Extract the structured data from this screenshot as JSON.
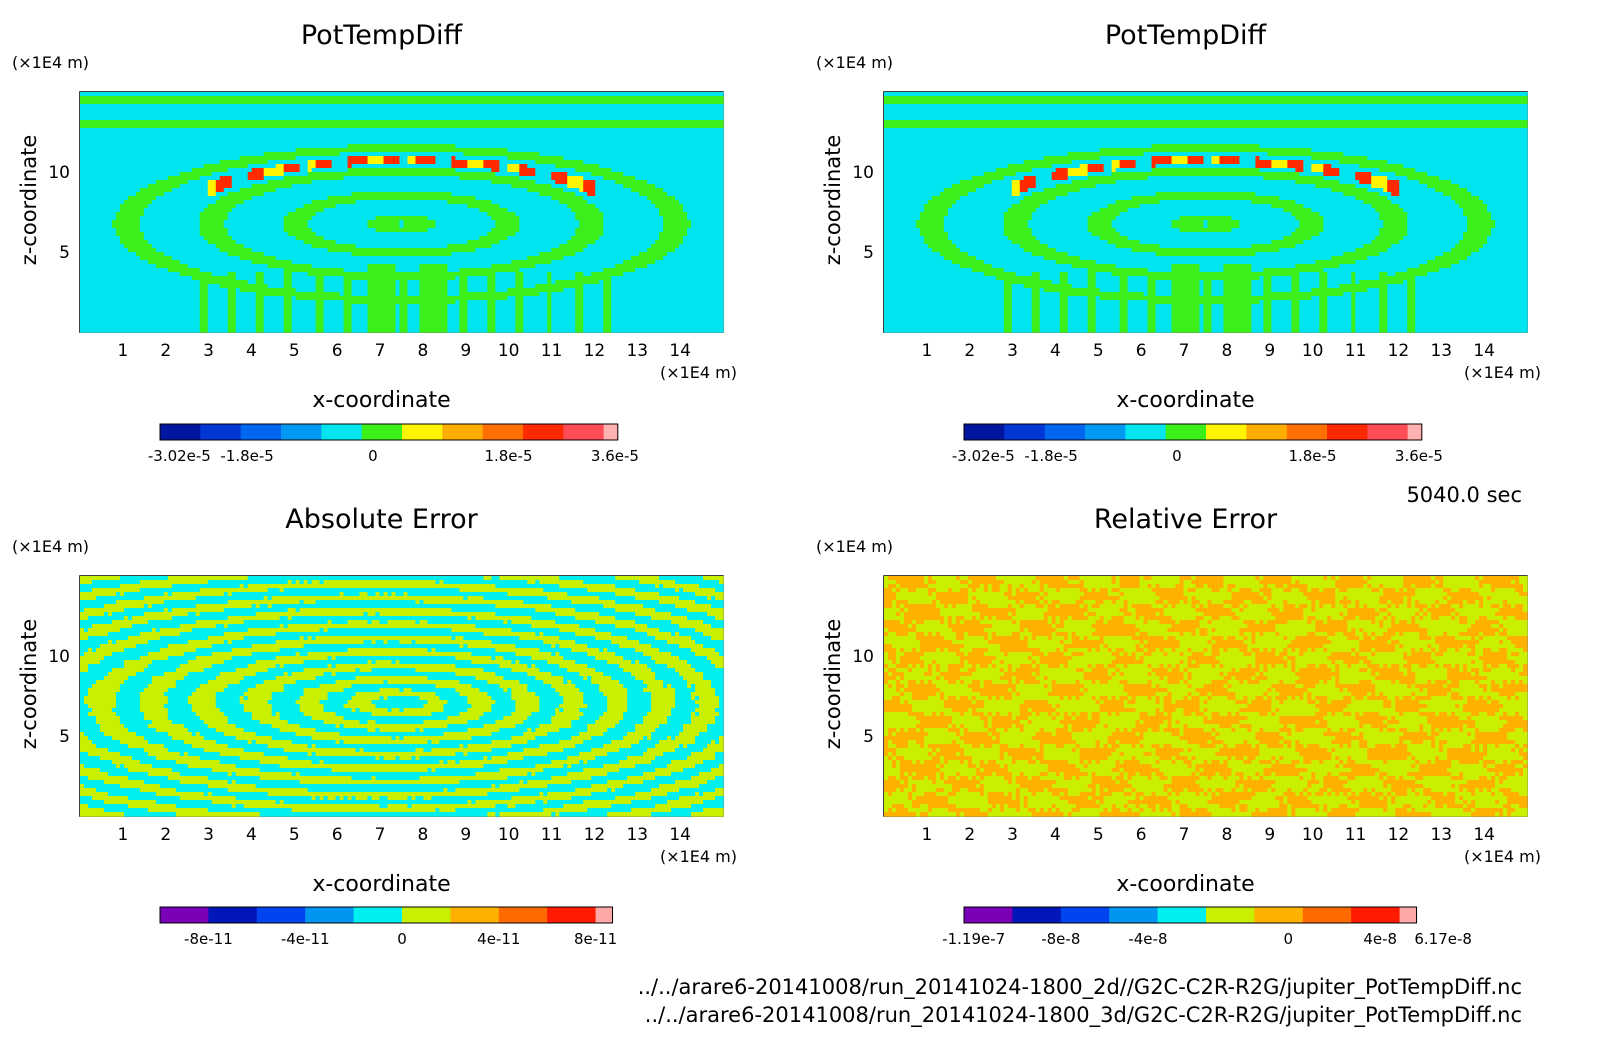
{
  "time_label": "5040.0 sec",
  "footer": {
    "line1": "../../arare6-20141008/run_20141024-1800_2d//G2C-C2R-R2G/jupiter_PotTempDiff.nc",
    "line2": "../../arare6-20141008/run_20141024-1800_3d/G2C-C2R-R2G/jupiter_PotTempDiff.nc"
  },
  "chart_data": [
    {
      "type": "heatmap",
      "title": "PotTempDiff",
      "xlabel": "x-coordinate",
      "ylabel": "z-coordinate",
      "x_unit": "(×1E4 m)",
      "y_unit": "(×1E4 m)",
      "xlim": [
        0,
        15
      ],
      "ylim": [
        0,
        15
      ],
      "x_ticks": [
        "1",
        "2",
        "3",
        "4",
        "5",
        "6",
        "7",
        "8",
        "9",
        "10",
        "11",
        "12",
        "13",
        "14"
      ],
      "y_ticks": [
        "5",
        "10"
      ],
      "colorbar": {
        "colors": [
          "#00169e",
          "#0036d6",
          "#0066f0",
          "#0098f0",
          "#00e4f0",
          "#3cef1a",
          "#fff500",
          "#ffae00",
          "#ff7000",
          "#ff2a00",
          "#ff4c55",
          "#ffb0b0"
        ],
        "tick_labels": [
          "-3.02e-5",
          "-1.8e-5",
          "0",
          "1.8e-5",
          "3.6e-5"
        ]
      }
    },
    {
      "type": "heatmap",
      "title": "PotTempDiff",
      "xlabel": "x-coordinate",
      "ylabel": "z-coordinate",
      "x_unit": "(×1E4 m)",
      "y_unit": "(×1E4 m)",
      "xlim": [
        0,
        15
      ],
      "ylim": [
        0,
        15
      ],
      "x_ticks": [
        "1",
        "2",
        "3",
        "4",
        "5",
        "6",
        "7",
        "8",
        "9",
        "10",
        "11",
        "12",
        "13",
        "14"
      ],
      "y_ticks": [
        "5",
        "10"
      ],
      "colorbar": {
        "colors": [
          "#00169e",
          "#0036d6",
          "#0066f0",
          "#0098f0",
          "#00e4f0",
          "#3cef1a",
          "#fff500",
          "#ffae00",
          "#ff7000",
          "#ff2a00",
          "#ff4c55",
          "#ffb0b0"
        ],
        "tick_labels": [
          "-3.02e-5",
          "-1.8e-5",
          "0",
          "1.8e-5",
          "3.6e-5"
        ]
      }
    },
    {
      "type": "heatmap",
      "title": "Absolute Error",
      "xlabel": "x-coordinate",
      "ylabel": "z-coordinate",
      "x_unit": "(×1E4 m)",
      "y_unit": "(×1E4 m)",
      "xlim": [
        0,
        15
      ],
      "ylim": [
        0,
        15
      ],
      "x_ticks": [
        "1",
        "2",
        "3",
        "4",
        "5",
        "6",
        "7",
        "8",
        "9",
        "10",
        "11",
        "12",
        "13",
        "14"
      ],
      "y_ticks": [
        "5",
        "10"
      ],
      "colorbar": {
        "colors": [
          "#7a00b8",
          "#0016b8",
          "#0044f0",
          "#0096f0",
          "#00f0f0",
          "#c8f000",
          "#ffb000",
          "#ff6a00",
          "#ff1a00",
          "#ffa8a8"
        ],
        "tick_labels": [
          "-8e-11",
          "-4e-11",
          "0",
          "4e-11",
          "8e-11"
        ]
      }
    },
    {
      "type": "heatmap",
      "title": "Relative Error",
      "xlabel": "x-coordinate",
      "ylabel": "z-coordinate",
      "x_unit": "(×1E4 m)",
      "y_unit": "(×1E4 m)",
      "xlim": [
        0,
        15
      ],
      "ylim": [
        0,
        15
      ],
      "x_ticks": [
        "1",
        "2",
        "3",
        "4",
        "5",
        "6",
        "7",
        "8",
        "9",
        "10",
        "11",
        "12",
        "13",
        "14"
      ],
      "y_ticks": [
        "5",
        "10"
      ],
      "colorbar": {
        "colors": [
          "#7a00b8",
          "#0016b8",
          "#0044f0",
          "#0096f0",
          "#00f0f0",
          "#c8f000",
          "#ffb000",
          "#ff6a00",
          "#ff1a00",
          "#ffa8a8"
        ],
        "tick_labels": [
          "-1.19e-7",
          "-8e-8",
          "-4e-8",
          "0",
          "4e-8",
          "6.17e-8"
        ]
      }
    }
  ]
}
